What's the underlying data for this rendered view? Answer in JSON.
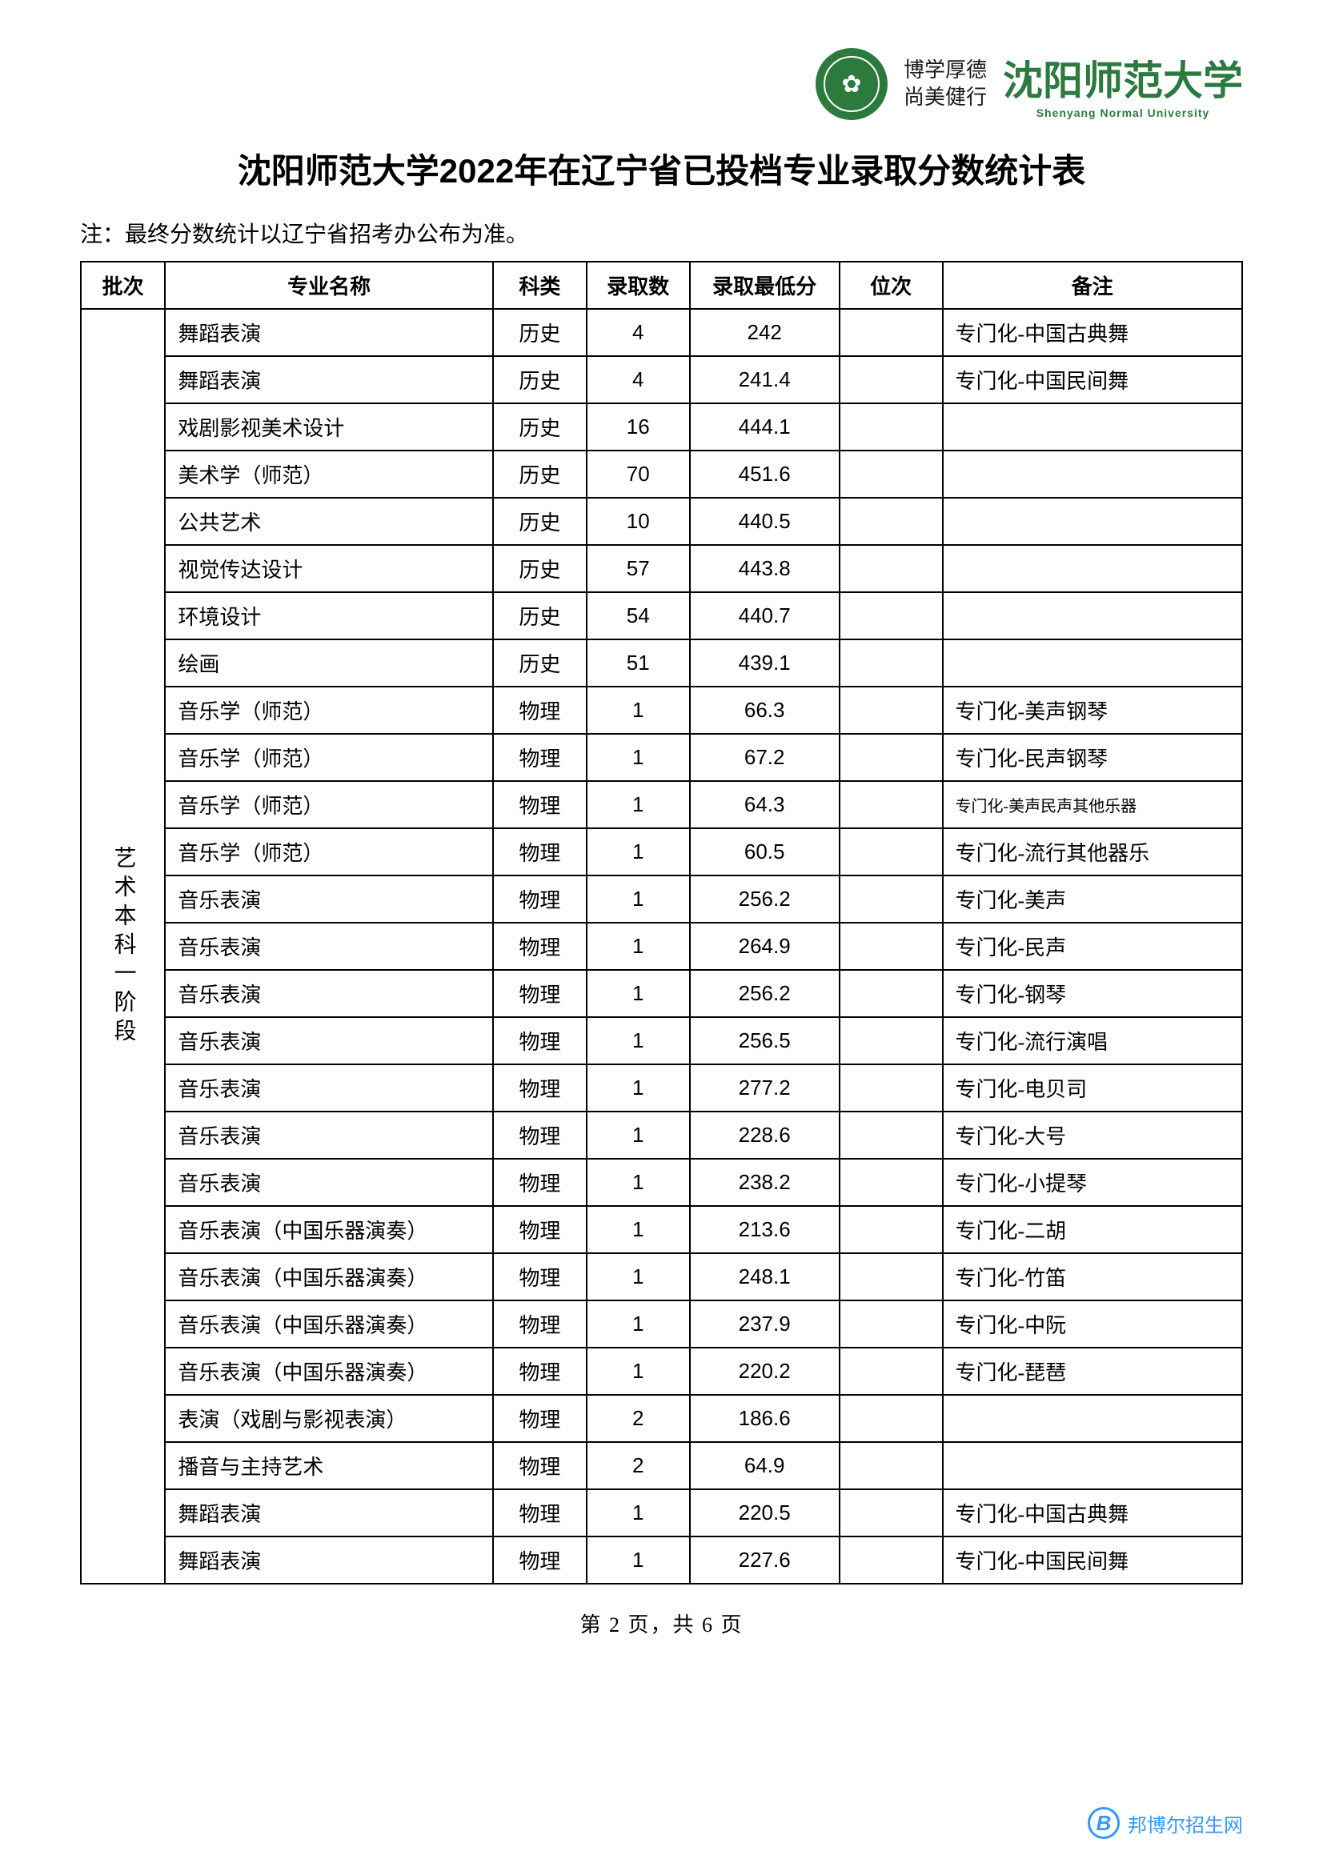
{
  "header": {
    "motto_line1": "博学厚德",
    "motto_line2": "尚美健行",
    "university_cn": "沈阳师范大学",
    "university_en": "Shenyang Normal University"
  },
  "title": "沈阳师范大学2022年在辽宁省已投档专业录取分数统计表",
  "note": "注：最终分数统计以辽宁省招考办公布为准。",
  "table": {
    "columns": [
      "批次",
      "专业名称",
      "科类",
      "录取数",
      "录取最低分",
      "位次",
      "备注"
    ],
    "batch_label": "艺术本科一阶段",
    "rows": [
      {
        "major": "舞蹈表演",
        "category": "历史",
        "count": "4",
        "score": "242",
        "rank": "",
        "remarks": "专门化-中国古典舞"
      },
      {
        "major": "舞蹈表演",
        "category": "历史",
        "count": "4",
        "score": "241.4",
        "rank": "",
        "remarks": "专门化-中国民间舞"
      },
      {
        "major": "戏剧影视美术设计",
        "category": "历史",
        "count": "16",
        "score": "444.1",
        "rank": "",
        "remarks": ""
      },
      {
        "major": "美术学（师范）",
        "category": "历史",
        "count": "70",
        "score": "451.6",
        "rank": "",
        "remarks": ""
      },
      {
        "major": "公共艺术",
        "category": "历史",
        "count": "10",
        "score": "440.5",
        "rank": "",
        "remarks": ""
      },
      {
        "major": "视觉传达设计",
        "category": "历史",
        "count": "57",
        "score": "443.8",
        "rank": "",
        "remarks": ""
      },
      {
        "major": "环境设计",
        "category": "历史",
        "count": "54",
        "score": "440.7",
        "rank": "",
        "remarks": ""
      },
      {
        "major": "绘画",
        "category": "历史",
        "count": "51",
        "score": "439.1",
        "rank": "",
        "remarks": ""
      },
      {
        "major": "音乐学（师范）",
        "category": "物理",
        "count": "1",
        "score": "66.3",
        "rank": "",
        "remarks": "专门化-美声钢琴"
      },
      {
        "major": "音乐学（师范）",
        "category": "物理",
        "count": "1",
        "score": "67.2",
        "rank": "",
        "remarks": "专门化-民声钢琴"
      },
      {
        "major": "音乐学（师范）",
        "category": "物理",
        "count": "1",
        "score": "64.3",
        "rank": "",
        "remarks": "专门化-美声民声其他乐器",
        "small": true
      },
      {
        "major": "音乐学（师范）",
        "category": "物理",
        "count": "1",
        "score": "60.5",
        "rank": "",
        "remarks": "专门化-流行其他器乐"
      },
      {
        "major": "音乐表演",
        "category": "物理",
        "count": "1",
        "score": "256.2",
        "rank": "",
        "remarks": "专门化-美声"
      },
      {
        "major": "音乐表演",
        "category": "物理",
        "count": "1",
        "score": "264.9",
        "rank": "",
        "remarks": "专门化-民声"
      },
      {
        "major": "音乐表演",
        "category": "物理",
        "count": "1",
        "score": "256.2",
        "rank": "",
        "remarks": "专门化-钢琴"
      },
      {
        "major": "音乐表演",
        "category": "物理",
        "count": "1",
        "score": "256.5",
        "rank": "",
        "remarks": "专门化-流行演唱"
      },
      {
        "major": "音乐表演",
        "category": "物理",
        "count": "1",
        "score": "277.2",
        "rank": "",
        "remarks": "专门化-电贝司"
      },
      {
        "major": "音乐表演",
        "category": "物理",
        "count": "1",
        "score": "228.6",
        "rank": "",
        "remarks": "专门化-大号"
      },
      {
        "major": "音乐表演",
        "category": "物理",
        "count": "1",
        "score": "238.2",
        "rank": "",
        "remarks": "专门化-小提琴"
      },
      {
        "major": "音乐表演（中国乐器演奏）",
        "category": "物理",
        "count": "1",
        "score": "213.6",
        "rank": "",
        "remarks": "专门化-二胡"
      },
      {
        "major": "音乐表演（中国乐器演奏）",
        "category": "物理",
        "count": "1",
        "score": "248.1",
        "rank": "",
        "remarks": "专门化-竹笛"
      },
      {
        "major": "音乐表演（中国乐器演奏）",
        "category": "物理",
        "count": "1",
        "score": "237.9",
        "rank": "",
        "remarks": "专门化-中阮"
      },
      {
        "major": "音乐表演（中国乐器演奏）",
        "category": "物理",
        "count": "1",
        "score": "220.2",
        "rank": "",
        "remarks": "专门化-琵琶"
      },
      {
        "major": "表演（戏剧与影视表演）",
        "category": "物理",
        "count": "2",
        "score": "186.6",
        "rank": "",
        "remarks": ""
      },
      {
        "major": "播音与主持艺术",
        "category": "物理",
        "count": "2",
        "score": "64.9",
        "rank": "",
        "remarks": ""
      },
      {
        "major": "舞蹈表演",
        "category": "物理",
        "count": "1",
        "score": "220.5",
        "rank": "",
        "remarks": "专门化-中国古典舞"
      },
      {
        "major": "舞蹈表演",
        "category": "物理",
        "count": "1",
        "score": "227.6",
        "rank": "",
        "remarks": "专门化-中国民间舞"
      }
    ]
  },
  "footer": "第 2 页，共 6 页",
  "watermark": {
    "logo_letter": "B",
    "text": "邦博尔招生网"
  },
  "colors": {
    "border": "#000000",
    "text": "#000000",
    "green": "#2d7a3e",
    "blue": "#3399ff",
    "background": "#ffffff"
  }
}
